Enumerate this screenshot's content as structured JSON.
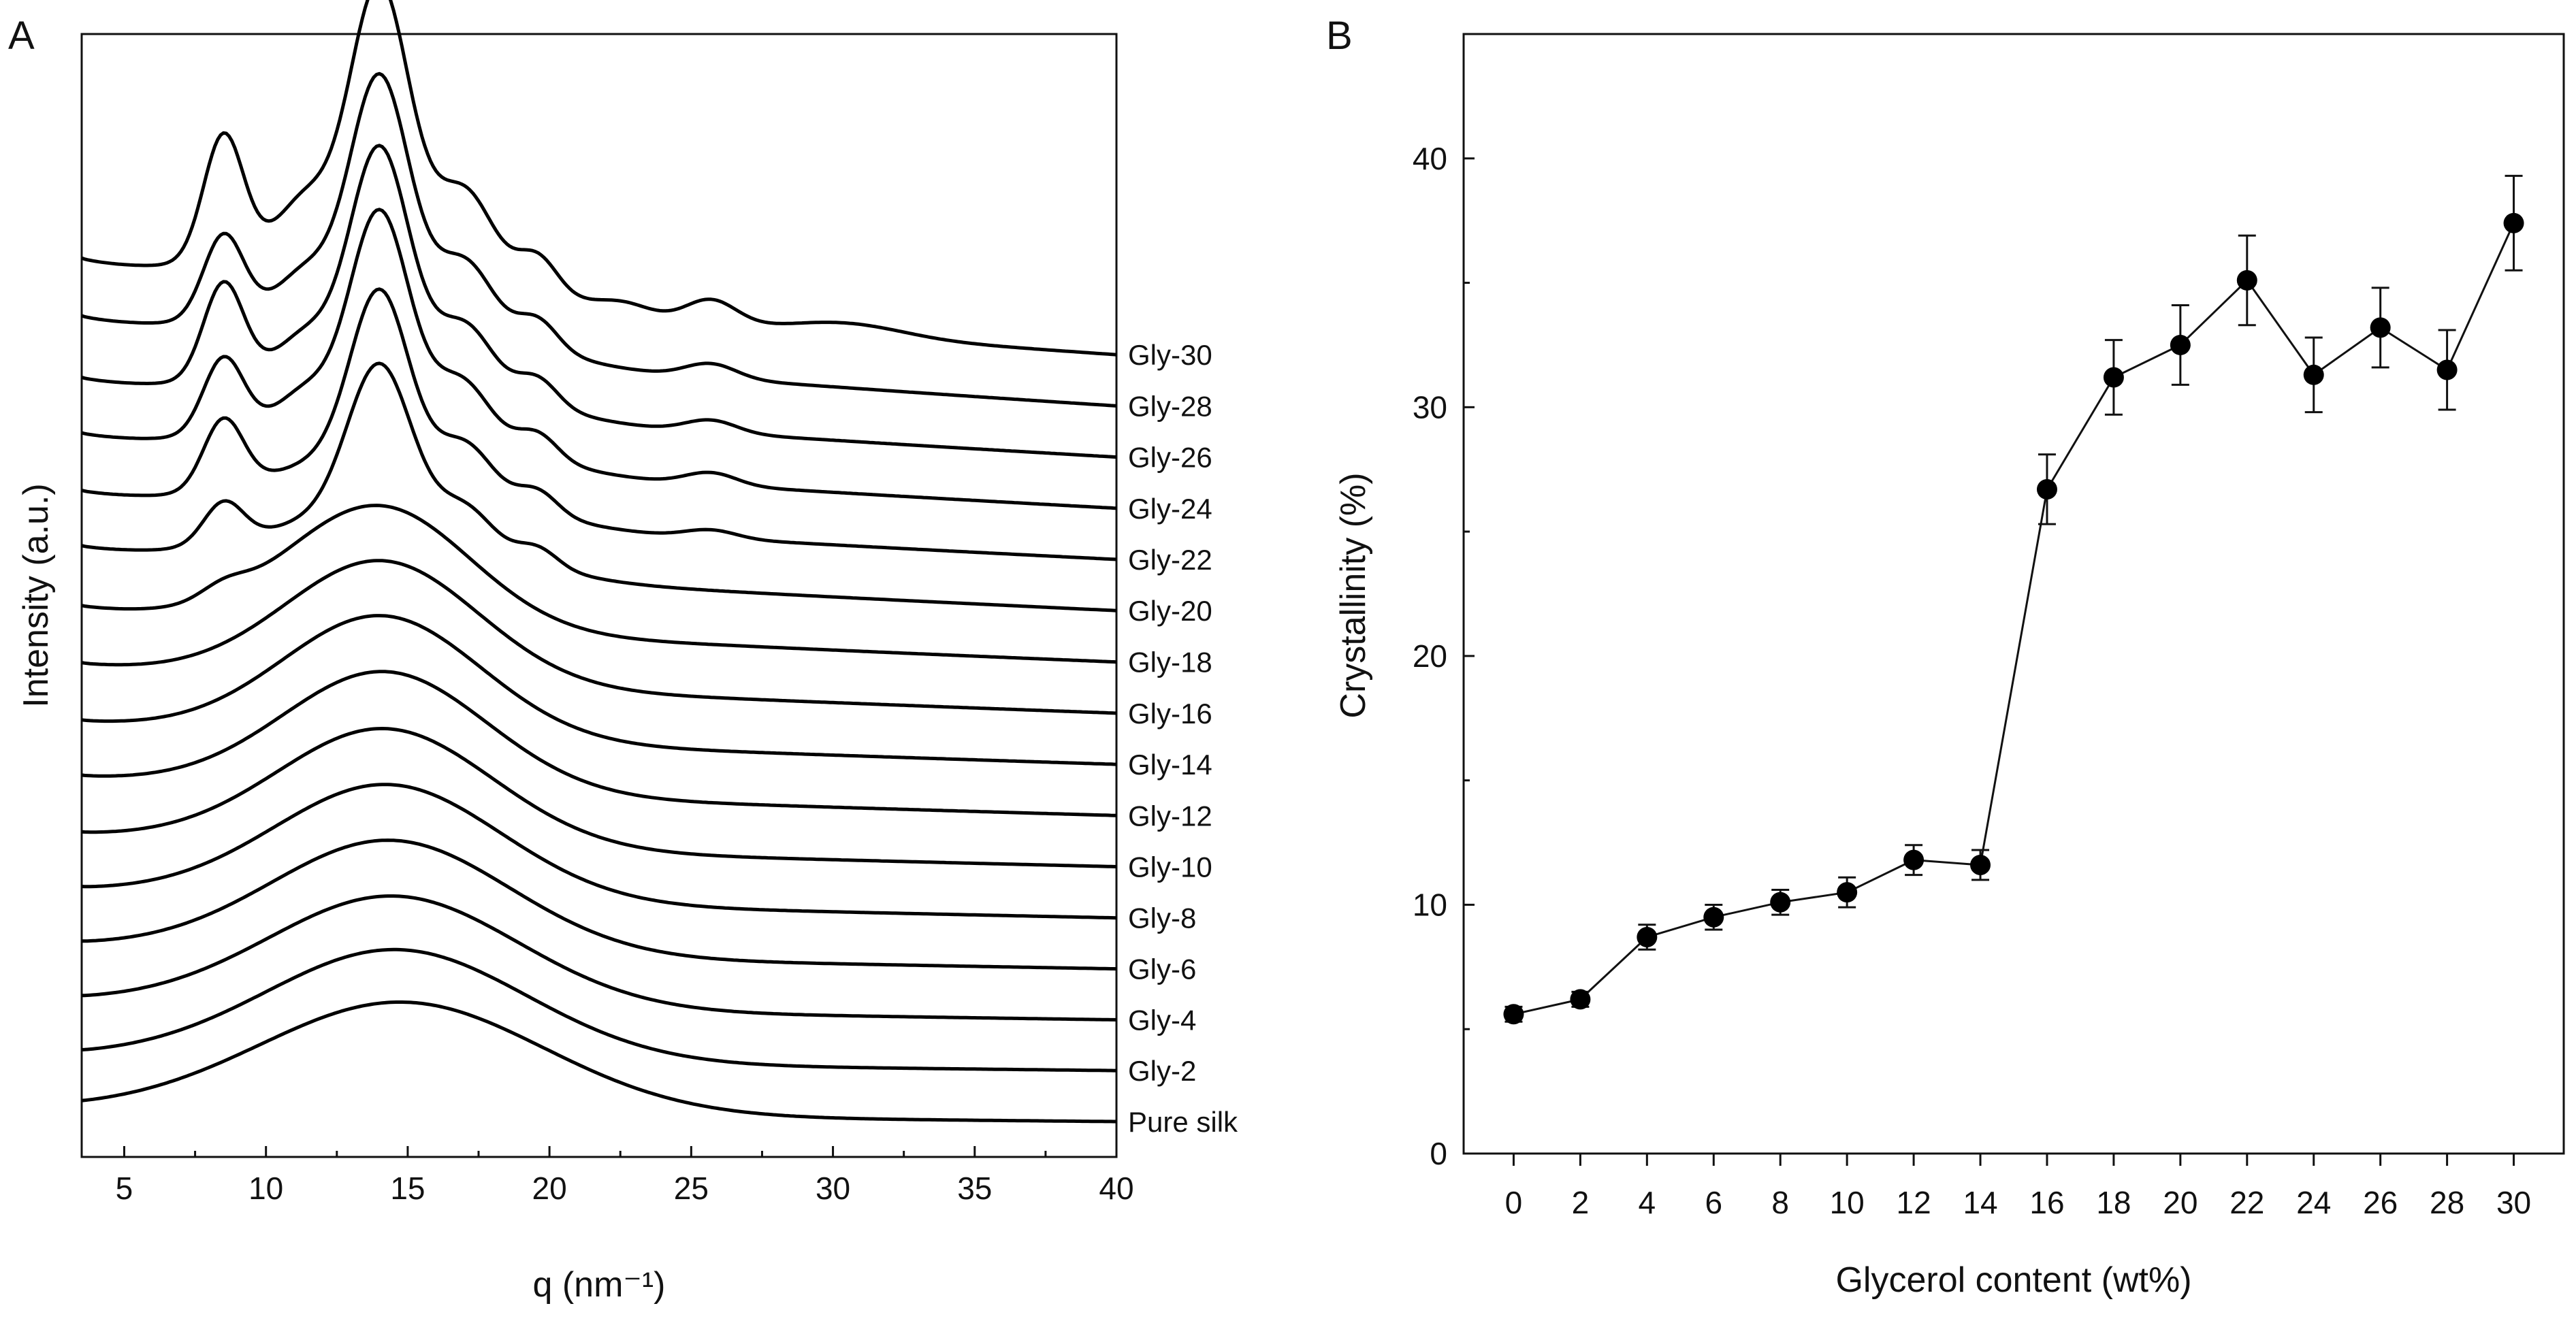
{
  "panel_a_letter": "A",
  "panel_b_letter": "B",
  "chart_data": [
    {
      "type": "line",
      "panel": "A",
      "title": "",
      "xlabel": "q (nm⁻¹)",
      "ylabel": "Intensity (a.u.)",
      "xlim": [
        3.5,
        40
      ],
      "xticks": [
        5,
        10,
        15,
        20,
        25,
        30,
        35,
        40
      ],
      "stacked_offset_series": true,
      "series": [
        {
          "name": "Pure silk",
          "start": 6,
          "end": 0.0,
          "peaks": [
            {
              "q": 14.8,
              "h": 55,
              "w": 5.0
            }
          ]
        },
        {
          "name": "Gly-2",
          "start": 8,
          "end": 0.8,
          "peaks": [
            {
              "q": 14.6,
              "h": 55,
              "w": 4.6
            }
          ]
        },
        {
          "name": "Gly-4",
          "start": 11,
          "end": 1.5,
          "peaks": [
            {
              "q": 14.5,
              "h": 55,
              "w": 4.4
            }
          ]
        },
        {
          "name": "Gly-6",
          "start": 14,
          "end": 2.3,
          "peaks": [
            {
              "q": 14.4,
              "h": 56,
              "w": 4.2
            }
          ]
        },
        {
          "name": "Gly-8",
          "start": 17,
          "end": 3.1,
          "peaks": [
            {
              "q": 14.3,
              "h": 57,
              "w": 4.0
            }
          ]
        },
        {
          "name": "Gly-10",
          "start": 20,
          "end": 4.0,
          "peaks": [
            {
              "q": 14.2,
              "h": 58,
              "w": 3.8
            }
          ]
        },
        {
          "name": "Gly-12",
          "start": 24,
          "end": 4.9,
          "peaks": [
            {
              "q": 14.2,
              "h": 59,
              "w": 3.6
            }
          ]
        },
        {
          "name": "Gly-14",
          "start": 27,
          "end": 5.8,
          "peaks": [
            {
              "q": 14.1,
              "h": 60,
              "w": 3.5
            }
          ]
        },
        {
          "name": "Gly-16",
          "start": 31,
          "end": 6.7,
          "peaks": [
            {
              "q": 14.1,
              "h": 60,
              "w": 3.4
            }
          ]
        },
        {
          "name": "Gly-18",
          "start": 35,
          "end": 7.6,
          "peaks": [
            {
              "q": 8.5,
              "h": 6,
              "w": 0.8
            },
            {
              "q": 14.0,
              "h": 60,
              "w": 3.2
            }
          ]
        },
        {
          "name": "Gly-20",
          "start": 40,
          "end": 8.6,
          "peaks": [
            {
              "q": 8.5,
              "h": 20,
              "w": 0.7
            },
            {
              "q": 14.0,
              "h": 72,
              "w": 1.1
            },
            {
              "q": 14.0,
              "h": 30,
              "w": 3.6
            },
            {
              "q": 17.1,
              "h": 14,
              "w": 0.9
            },
            {
              "q": 19.6,
              "h": 8,
              "w": 0.7
            }
          ]
        },
        {
          "name": "Gly-22",
          "start": 43,
          "end": 9.5,
          "peaks": [
            {
              "q": 8.5,
              "h": 34,
              "w": 0.7
            },
            {
              "q": 14.0,
              "h": 80,
              "w": 1.0
            },
            {
              "q": 14.0,
              "h": 32,
              "w": 3.5
            },
            {
              "q": 17.1,
              "h": 18,
              "w": 0.9
            },
            {
              "q": 19.6,
              "h": 10,
              "w": 0.7
            },
            {
              "q": 25.7,
              "h": 4,
              "w": 0.9
            }
          ]
        },
        {
          "name": "Gly-24",
          "start": 47,
          "end": 10.4,
          "peaks": [
            {
              "q": 8.5,
              "h": 36,
              "w": 0.7
            },
            {
              "q": 11.3,
              "h": 8,
              "w": 0.8
            },
            {
              "q": 14.0,
              "h": 90,
              "w": 1.0
            },
            {
              "q": 14.0,
              "h": 34,
              "w": 3.5
            },
            {
              "q": 17.0,
              "h": 20,
              "w": 0.9
            },
            {
              "q": 19.6,
              "h": 11,
              "w": 0.7
            },
            {
              "q": 25.7,
              "h": 6,
              "w": 0.9
            }
          ]
        },
        {
          "name": "Gly-26",
          "start": 50,
          "end": 11.3,
          "peaks": [
            {
              "q": 8.5,
              "h": 46,
              "w": 0.7
            },
            {
              "q": 11.3,
              "h": 9,
              "w": 0.8
            },
            {
              "q": 14.0,
              "h": 95,
              "w": 1.0
            },
            {
              "q": 14.0,
              "h": 34,
              "w": 3.5
            },
            {
              "q": 17.1,
              "h": 22,
              "w": 0.9
            },
            {
              "q": 19.6,
              "h": 12,
              "w": 0.7
            },
            {
              "q": 25.7,
              "h": 6,
              "w": 0.9
            }
          ]
        },
        {
          "name": "Gly-28",
          "start": 56,
          "end": 12.2,
          "peaks": [
            {
              "q": 8.5,
              "h": 40,
              "w": 0.7
            },
            {
              "q": 11.3,
              "h": 10,
              "w": 0.8
            },
            {
              "q": 14.0,
              "h": 100,
              "w": 1.0
            },
            {
              "q": 14.0,
              "h": 36,
              "w": 3.5
            },
            {
              "q": 17.1,
              "h": 24,
              "w": 0.9
            },
            {
              "q": 19.6,
              "h": 13,
              "w": 0.7
            },
            {
              "q": 25.7,
              "h": 7,
              "w": 0.9
            }
          ]
        },
        {
          "name": "Gly-30",
          "start": 60,
          "end": 13.1,
          "peaks": [
            {
              "q": 8.5,
              "h": 60,
              "w": 0.7
            },
            {
              "q": 11.3,
              "h": 14,
              "w": 0.8
            },
            {
              "q": 14.0,
              "h": 112,
              "w": 1.0
            },
            {
              "q": 14.0,
              "h": 42,
              "w": 3.5
            },
            {
              "q": 17.1,
              "h": 28,
              "w": 0.9
            },
            {
              "q": 19.6,
              "h": 16,
              "w": 0.7
            },
            {
              "q": 22.6,
              "h": 6,
              "w": 1.0
            },
            {
              "q": 25.7,
              "h": 12,
              "w": 0.9
            },
            {
              "q": 30.5,
              "h": 6,
              "w": 2.0
            }
          ]
        }
      ]
    },
    {
      "type": "line",
      "panel": "B",
      "title": "",
      "xlabel": "Glycerol content (wt%)",
      "ylabel": "Crystallinity (%)",
      "xlim": [
        -1.5,
        31.5
      ],
      "ylim": [
        0,
        45
      ],
      "xticks": [
        0,
        2,
        4,
        6,
        8,
        10,
        12,
        14,
        16,
        18,
        20,
        22,
        24,
        26,
        28,
        30
      ],
      "yticks": [
        0,
        10,
        20,
        30,
        40
      ],
      "grid": false,
      "markers": "filled-circle",
      "series": [
        {
          "name": "Crystallinity",
          "x": [
            0,
            2,
            4,
            6,
            8,
            10,
            12,
            14,
            16,
            18,
            20,
            22,
            24,
            26,
            28,
            30
          ],
          "y": [
            5.6,
            6.2,
            8.7,
            9.5,
            10.1,
            10.5,
            11.8,
            11.6,
            26.7,
            31.2,
            32.5,
            35.1,
            31.3,
            33.2,
            31.5,
            37.4
          ],
          "error": [
            0.3,
            0.3,
            0.5,
            0.5,
            0.5,
            0.6,
            0.6,
            0.6,
            1.4,
            1.5,
            1.6,
            1.8,
            1.5,
            1.6,
            1.6,
            1.9
          ]
        }
      ]
    }
  ]
}
